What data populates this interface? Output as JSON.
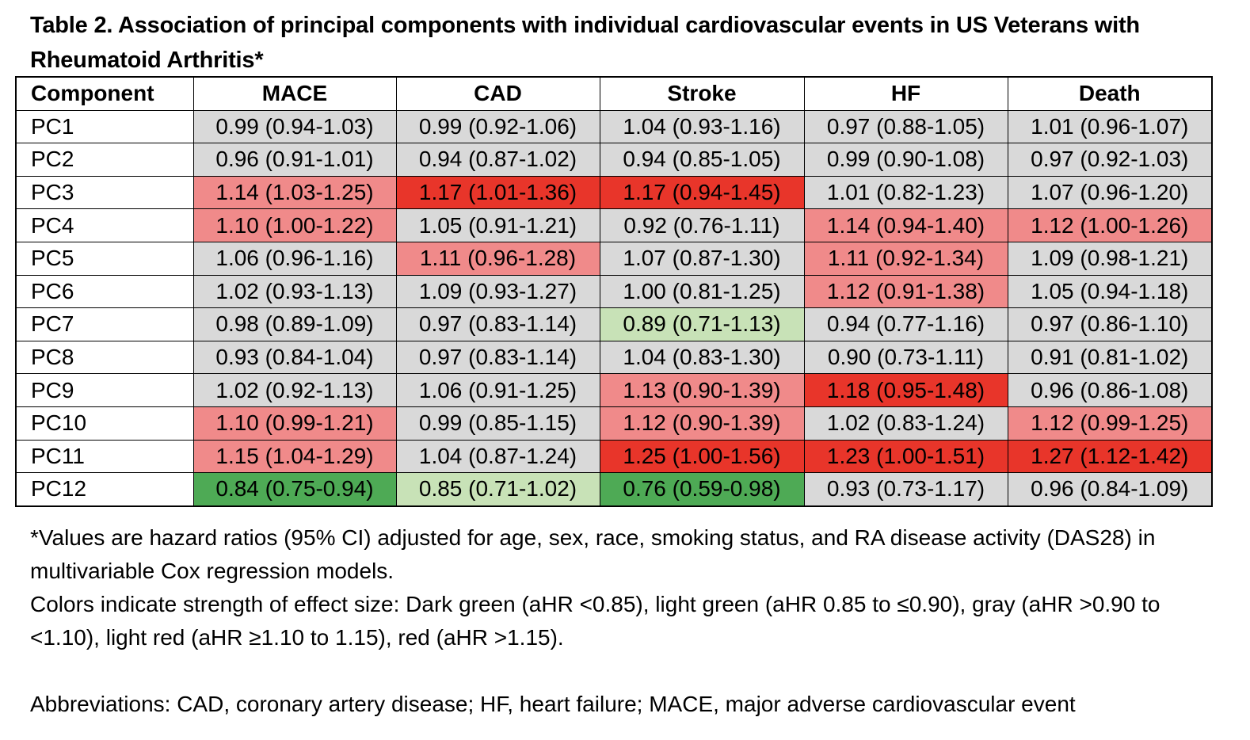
{
  "title": "Table 2. Association of principal components with individual cardiovascular events in US Veterans with Rheumatoid Arthritis*",
  "colors": {
    "dark_green": "#4eaa55",
    "light_green": "#c8e2b7",
    "gray": "#d9d9d9",
    "light_red": "#f08a8a",
    "red": "#e8352a"
  },
  "table": {
    "headers": [
      "Component",
      "MACE",
      "CAD",
      "Stroke",
      "HF",
      "Death"
    ],
    "rows": [
      {
        "component": "PC1",
        "cells": [
          {
            "text": "0.99 (0.94-1.03)",
            "color": "gray"
          },
          {
            "text": "0.99 (0.92-1.06)",
            "color": "gray"
          },
          {
            "text": "1.04 (0.93-1.16)",
            "color": "gray"
          },
          {
            "text": "0.97 (0.88-1.05)",
            "color": "gray"
          },
          {
            "text": "1.01 (0.96-1.07)",
            "color": "gray"
          }
        ]
      },
      {
        "component": "PC2",
        "cells": [
          {
            "text": "0.96 (0.91-1.01)",
            "color": "gray"
          },
          {
            "text": "0.94 (0.87-1.02)",
            "color": "gray"
          },
          {
            "text": "0.94 (0.85-1.05)",
            "color": "gray"
          },
          {
            "text": "0.99 (0.90-1.08)",
            "color": "gray"
          },
          {
            "text": "0.97 (0.92-1.03)",
            "color": "gray"
          }
        ]
      },
      {
        "component": "PC3",
        "cells": [
          {
            "text": "1.14 (1.03-1.25)",
            "color": "light_red"
          },
          {
            "text": "1.17 (1.01-1.36)",
            "color": "red"
          },
          {
            "text": "1.17 (0.94-1.45)",
            "color": "red"
          },
          {
            "text": "1.01 (0.82-1.23)",
            "color": "gray"
          },
          {
            "text": "1.07 (0.96-1.20)",
            "color": "gray"
          }
        ]
      },
      {
        "component": "PC4",
        "cells": [
          {
            "text": "1.10 (1.00-1.22)",
            "color": "light_red"
          },
          {
            "text": "1.05 (0.91-1.21)",
            "color": "gray"
          },
          {
            "text": "0.92 (0.76-1.11)",
            "color": "gray"
          },
          {
            "text": "1.14 (0.94-1.40)",
            "color": "light_red"
          },
          {
            "text": "1.12 (1.00-1.26)",
            "color": "light_red"
          }
        ]
      },
      {
        "component": "PC5",
        "cells": [
          {
            "text": "1.06 (0.96-1.16)",
            "color": "gray"
          },
          {
            "text": "1.11 (0.96-1.28)",
            "color": "light_red"
          },
          {
            "text": "1.07 (0.87-1.30)",
            "color": "gray"
          },
          {
            "text": "1.11 (0.92-1.34)",
            "color": "light_red"
          },
          {
            "text": "1.09 (0.98-1.21)",
            "color": "gray"
          }
        ]
      },
      {
        "component": "PC6",
        "cells": [
          {
            "text": "1.02 (0.93-1.13)",
            "color": "gray"
          },
          {
            "text": "1.09 (0.93-1.27)",
            "color": "gray"
          },
          {
            "text": "1.00 (0.81-1.25)",
            "color": "gray"
          },
          {
            "text": "1.12 (0.91-1.38)",
            "color": "light_red"
          },
          {
            "text": "1.05 (0.94-1.18)",
            "color": "gray"
          }
        ]
      },
      {
        "component": "PC7",
        "cells": [
          {
            "text": "0.98 (0.89-1.09)",
            "color": "gray"
          },
          {
            "text": "0.97 (0.83-1.14)",
            "color": "gray"
          },
          {
            "text": "0.89 (0.71-1.13)",
            "color": "light_green"
          },
          {
            "text": "0.94 (0.77-1.16)",
            "color": "gray"
          },
          {
            "text": "0.97 (0.86-1.10)",
            "color": "gray"
          }
        ]
      },
      {
        "component": "PC8",
        "cells": [
          {
            "text": "0.93 (0.84-1.04)",
            "color": "gray"
          },
          {
            "text": "0.97 (0.83-1.14)",
            "color": "gray"
          },
          {
            "text": "1.04 (0.83-1.30)",
            "color": "gray"
          },
          {
            "text": "0.90 (0.73-1.11)",
            "color": "gray"
          },
          {
            "text": "0.91 (0.81-1.02)",
            "color": "gray"
          }
        ]
      },
      {
        "component": "PC9",
        "cells": [
          {
            "text": "1.02 (0.92-1.13)",
            "color": "gray"
          },
          {
            "text": "1.06 (0.91-1.25)",
            "color": "gray"
          },
          {
            "text": "1.13 (0.90-1.39)",
            "color": "light_red"
          },
          {
            "text": "1.18 (0.95-1.48)",
            "color": "red"
          },
          {
            "text": "0.96 (0.86-1.08)",
            "color": "gray"
          }
        ]
      },
      {
        "component": "PC10",
        "cells": [
          {
            "text": "1.10 (0.99-1.21)",
            "color": "light_red"
          },
          {
            "text": "0.99 (0.85-1.15)",
            "color": "gray"
          },
          {
            "text": "1.12 (0.90-1.39)",
            "color": "light_red"
          },
          {
            "text": "1.02 (0.83-1.24)",
            "color": "gray"
          },
          {
            "text": "1.12 (0.99-1.25)",
            "color": "light_red"
          }
        ]
      },
      {
        "component": "PC11",
        "cells": [
          {
            "text": "1.15 (1.04-1.29)",
            "color": "light_red"
          },
          {
            "text": "1.04 (0.87-1.24)",
            "color": "gray"
          },
          {
            "text": "1.25 (1.00-1.56)",
            "color": "red"
          },
          {
            "text": "1.23 (1.00-1.51)",
            "color": "red"
          },
          {
            "text": "1.27 (1.12-1.42)",
            "color": "red"
          }
        ]
      },
      {
        "component": "PC12",
        "cells": [
          {
            "text": "0.84 (0.75-0.94)",
            "color": "dark_green"
          },
          {
            "text": "0.85 (0.71-1.02)",
            "color": "light_green"
          },
          {
            "text": "0.76 (0.59-0.98)",
            "color": "dark_green"
          },
          {
            "text": "0.93 (0.73-1.17)",
            "color": "gray"
          },
          {
            "text": "0.96 (0.84-1.09)",
            "color": "gray"
          }
        ]
      }
    ]
  },
  "notes": {
    "footnote": "*Values are hazard ratios (95% CI) adjusted for age, sex, race, smoking status, and RA disease activity (DAS28) in multivariable Cox regression models.",
    "colors_legend": "Colors indicate strength of effect size: Dark green (aHR <0.85), light green (aHR 0.85 to ≤0.90), gray (aHR >0.90 to <1.10), light red (aHR ≥1.10 to 1.15), red (aHR >1.15).",
    "abbreviations": "Abbreviations: CAD, coronary artery disease; HF, heart failure; MACE, major adverse cardiovascular event"
  }
}
